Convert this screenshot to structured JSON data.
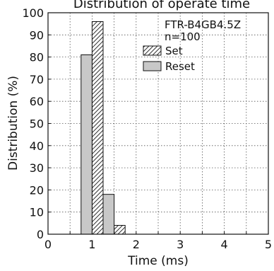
{
  "chart_data": {
    "type": "bar",
    "title": "Distribution of operate time",
    "xlabel": "Time (ms)",
    "ylabel": "Distribution (%)",
    "xlim": [
      0,
      5
    ],
    "ylim": [
      0,
      100
    ],
    "x_ticks": [
      "0",
      "1",
      "2",
      "3",
      "4",
      "5"
    ],
    "y_ticks": [
      "0",
      "10",
      "20",
      "30",
      "40",
      "50",
      "60",
      "70",
      "80",
      "90",
      "100"
    ],
    "grid": true,
    "annotation": [
      "FTR-B4GB4.5Z",
      "n=100"
    ],
    "bin_width": 0.25,
    "series": [
      {
        "name": "Set",
        "style": "hatched",
        "color": "#ffffff",
        "bins": [
          {
            "x_start": 1.0,
            "value": 96
          },
          {
            "x_start": 1.5,
            "value": 4
          }
        ]
      },
      {
        "name": "Reset",
        "style": "solid",
        "color": "#c8c8c8",
        "bins": [
          {
            "x_start": 0.75,
            "value": 81
          },
          {
            "x_start": 1.25,
            "value": 18
          }
        ]
      }
    ],
    "legend_position": "top-right"
  }
}
